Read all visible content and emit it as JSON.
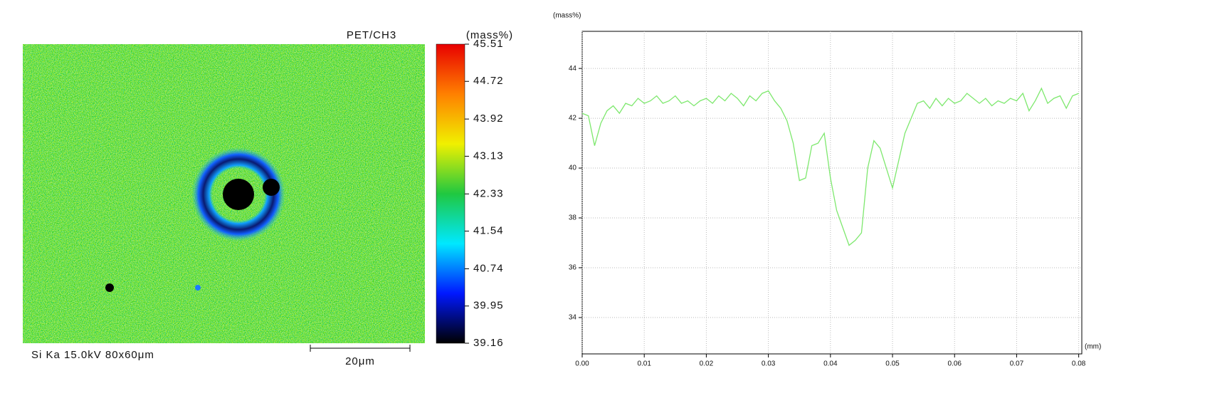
{
  "chart_data": [
    {
      "type": "map",
      "title": "PET/CH3",
      "unit_label": "(mass%)",
      "caption": "Si Ka 15.0kV 80x60μm",
      "scale_bar_label": "20μm",
      "clim": [
        39.16,
        45.51
      ],
      "cticks": [
        45.51,
        44.72,
        43.92,
        43.13,
        42.33,
        41.54,
        40.74,
        39.95,
        39.16
      ],
      "colormap": [
        "#000000",
        "#0018ff",
        "#00e8ff",
        "#20c840",
        "#f0f000",
        "#ff8000",
        "#e80000"
      ]
    },
    {
      "type": "line",
      "y_label": "(mass%)",
      "x_label": "(mm)",
      "color": "#7ee86e",
      "grid": true,
      "x": [
        0,
        0.001,
        0.002,
        0.003,
        0.004,
        0.005,
        0.006,
        0.007,
        0.008,
        0.009,
        0.01,
        0.011,
        0.012,
        0.013,
        0.014,
        0.015,
        0.016,
        0.017,
        0.018,
        0.019,
        0.02,
        0.021,
        0.022,
        0.023,
        0.024,
        0.025,
        0.026,
        0.027,
        0.028,
        0.029,
        0.03,
        0.031,
        0.032,
        0.033,
        0.034,
        0.035,
        0.036,
        0.037,
        0.038,
        0.039,
        0.04,
        0.041,
        0.042,
        0.043,
        0.044,
        0.045,
        0.046,
        0.047,
        0.048,
        0.049,
        0.05,
        0.051,
        0.052,
        0.053,
        0.054,
        0.055,
        0.056,
        0.057,
        0.058,
        0.059,
        0.06,
        0.061,
        0.062,
        0.063,
        0.064,
        0.065,
        0.066,
        0.067,
        0.068,
        0.069,
        0.07,
        0.071,
        0.072,
        0.073,
        0.074,
        0.075,
        0.076,
        0.077,
        0.078,
        0.079,
        0.08
      ],
      "values": [
        42.2,
        42.1,
        40.9,
        41.8,
        42.3,
        42.5,
        42.2,
        42.6,
        42.5,
        42.8,
        42.6,
        42.7,
        42.9,
        42.6,
        42.7,
        42.9,
        42.6,
        42.7,
        42.5,
        42.7,
        42.8,
        42.6,
        42.9,
        42.7,
        43.0,
        42.8,
        42.5,
        42.9,
        42.7,
        43.0,
        43.1,
        42.7,
        42.4,
        41.9,
        41.0,
        39.5,
        39.6,
        40.9,
        41.0,
        41.4,
        39.6,
        38.3,
        37.6,
        36.9,
        37.1,
        37.4,
        40.0,
        41.1,
        40.8,
        40.0,
        39.2,
        40.3,
        41.4,
        42.0,
        42.6,
        42.7,
        42.4,
        42.8,
        42.5,
        42.8,
        42.6,
        42.7,
        43.0,
        42.8,
        42.6,
        42.8,
        42.5,
        42.7,
        42.6,
        42.8,
        42.7,
        43.0,
        42.3,
        42.7,
        43.2,
        42.6,
        42.8,
        42.9,
        42.4,
        42.9,
        43.0
      ],
      "xlim": [
        0,
        0.0805
      ],
      "ylim": [
        32.54,
        45.49
      ],
      "yticks": [
        34,
        36,
        38,
        40,
        42,
        44
      ],
      "xticks": [
        {
          "value": 0,
          "label": "0.00"
        },
        {
          "value": 0.01,
          "label": "0.01"
        },
        {
          "value": 0.02,
          "label": "0.02"
        },
        {
          "value": 0.03,
          "label": "0.03"
        },
        {
          "value": 0.04,
          "label": "0.04"
        },
        {
          "value": 0.05,
          "label": "0.05"
        },
        {
          "value": 0.06,
          "label": "0.06"
        },
        {
          "value": 0.07,
          "label": "0.07"
        },
        {
          "value": 0.08,
          "label": "0.08"
        }
      ]
    }
  ]
}
